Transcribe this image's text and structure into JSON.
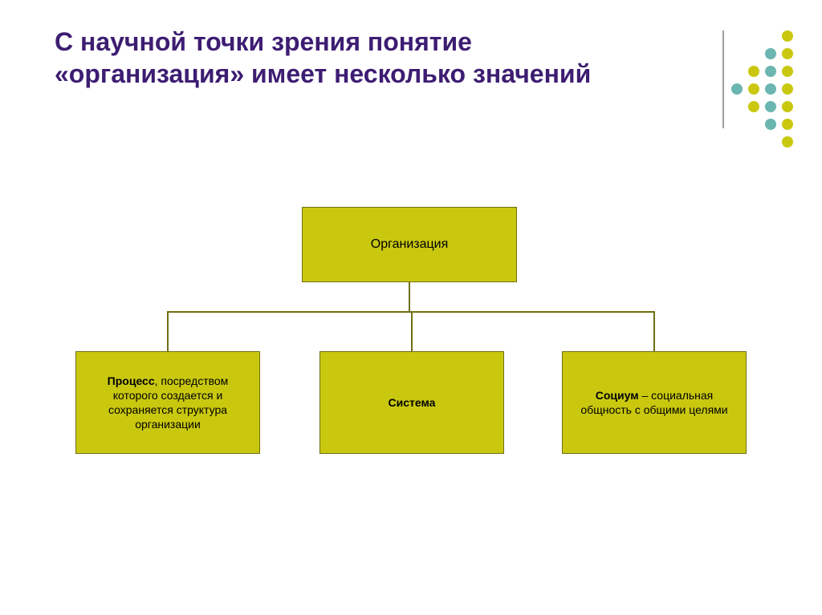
{
  "title": "С научной точки зрения понятие «организация» имеет несколько значений",
  "title_color": "#3d1d72",
  "title_fontsize": 32,
  "diagram": {
    "type": "tree",
    "box_fill": "#c9c80f",
    "box_border": "#6f6f11",
    "connector_color": "#6f6f11",
    "root": {
      "label": "Организация"
    },
    "children": [
      {
        "bold": "Процесс",
        "rest": ", посредством которого создается и сохраняется структура организации"
      },
      {
        "bold": "Система",
        "rest": ""
      },
      {
        "bold": "Социум",
        "rest": " – социальная общность с общими целями"
      }
    ]
  },
  "decoration": {
    "rows": [
      [
        "#c9c80f"
      ],
      [
        "#6bb6b0",
        "#c9c80f"
      ],
      [
        "#c9c80f",
        "#6bb6b0",
        "#c9c80f"
      ],
      [
        "#6bb6b0",
        "#c9c80f",
        "#6bb6b0",
        "#c9c80f"
      ],
      [
        "#c9c80f",
        "#6bb6b0",
        "#c9c80f"
      ],
      [
        "#6bb6b0",
        "#c9c80f"
      ],
      [
        "#c9c80f"
      ]
    ],
    "vline_color": "#9e9e9e"
  },
  "background_color": "#ffffff"
}
